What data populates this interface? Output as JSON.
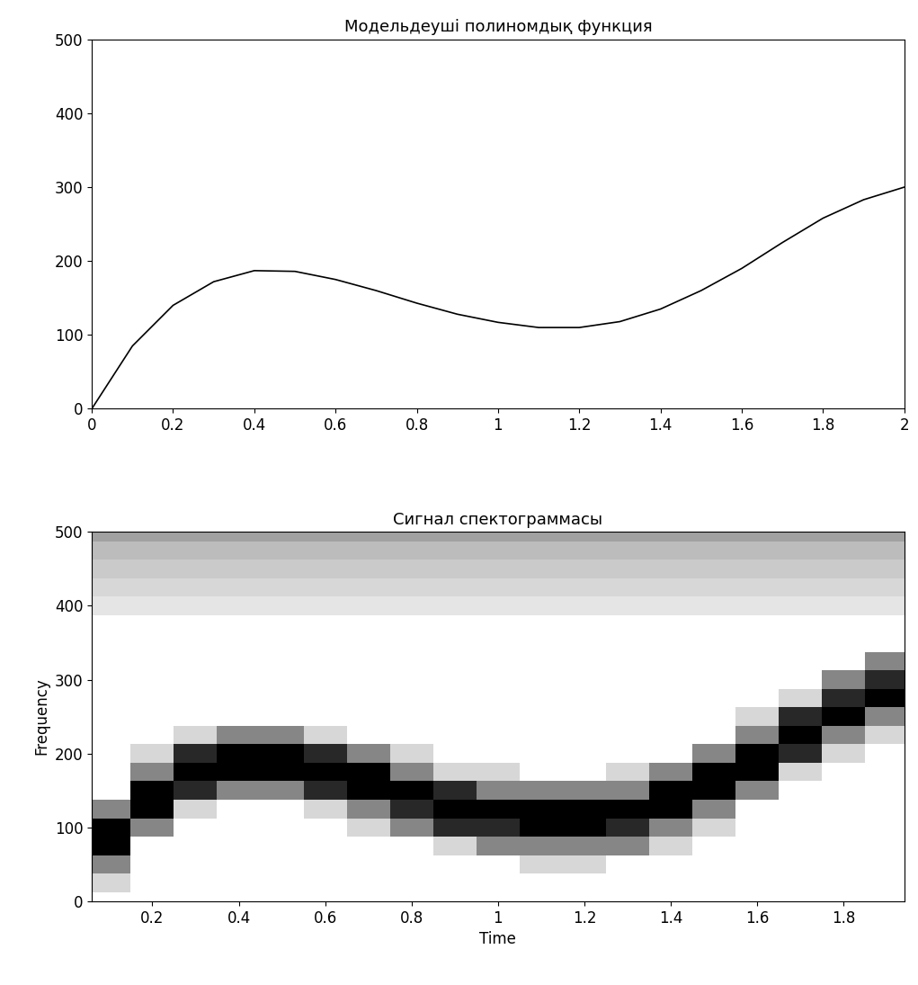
{
  "chart_data": [
    {
      "type": "line",
      "title": "Модельдеуші полиномдық функция",
      "color": "#000000",
      "x": [
        0,
        0.1,
        0.2,
        0.3,
        0.4,
        0.5,
        0.6,
        0.7,
        0.8,
        0.9,
        1,
        1.1,
        1.2,
        1.3,
        1.4,
        1.5,
        1.6,
        1.7,
        1.8,
        1.9,
        2
      ],
      "values": [
        0,
        85,
        140,
        172,
        187,
        186,
        175,
        160,
        143,
        128,
        117,
        110,
        110,
        118,
        135,
        160,
        190,
        225,
        258,
        283,
        300
      ],
      "xlim": [
        0,
        2
      ],
      "xticks": [
        0,
        0.2,
        0.4,
        0.6,
        0.8,
        1,
        1.2,
        1.4,
        1.6,
        1.8,
        2
      ],
      "ylim": [
        0,
        500
      ],
      "yticks": [
        0,
        100,
        200,
        300,
        400,
        500
      ]
    },
    {
      "type": "heatmap",
      "title": "Сигнал спектограммасы",
      "x_label": "Time",
      "y_label": "Frequency",
      "x": [
        0.1,
        0.2,
        0.3,
        0.4,
        0.5,
        0.6,
        0.7,
        0.8,
        0.9,
        1,
        1.1,
        1.2,
        1.3,
        1.4,
        1.5,
        1.6,
        1.7,
        1.8,
        1.9
      ],
      "y": [
        0,
        25,
        50,
        75,
        100,
        125,
        150,
        175,
        200,
        225,
        250,
        275,
        300,
        325,
        350,
        375,
        400,
        425,
        450,
        475,
        500
      ],
      "cells_by_column": [
        [
          0.05,
          0.2,
          0.5,
          1,
          1,
          0.5,
          0.05,
          0.05,
          0.05,
          0.05,
          0.05,
          0.05,
          0.05,
          0.05,
          0.05,
          0.05,
          0.15,
          0.2,
          0.25,
          0.3,
          0.4
        ],
        [
          0.05,
          0.05,
          0.05,
          0.05,
          0.5,
          1,
          1,
          0.5,
          0.2,
          0.05,
          0.05,
          0.05,
          0.05,
          0.05,
          0.05,
          0.05,
          0.15,
          0.2,
          0.25,
          0.3,
          0.4
        ],
        [
          0.05,
          0.05,
          0.05,
          0.05,
          0.05,
          0.2,
          0.85,
          1,
          0.85,
          0.2,
          0.05,
          0.05,
          0.05,
          0.05,
          0.05,
          0.05,
          0.15,
          0.2,
          0.25,
          0.3,
          0.4
        ],
        [
          0.05,
          0.05,
          0.05,
          0.05,
          0.05,
          0.05,
          0.5,
          1,
          1,
          0.5,
          0.05,
          0.05,
          0.05,
          0.05,
          0.05,
          0.05,
          0.15,
          0.2,
          0.25,
          0.3,
          0.4
        ],
        [
          0.05,
          0.05,
          0.05,
          0.05,
          0.05,
          0.05,
          0.5,
          1,
          1,
          0.5,
          0.05,
          0.05,
          0.05,
          0.05,
          0.05,
          0.05,
          0.15,
          0.2,
          0.25,
          0.3,
          0.4
        ],
        [
          0.05,
          0.05,
          0.05,
          0.05,
          0.05,
          0.2,
          0.85,
          1,
          0.85,
          0.2,
          0.05,
          0.05,
          0.05,
          0.05,
          0.05,
          0.05,
          0.15,
          0.2,
          0.25,
          0.3,
          0.4
        ],
        [
          0.05,
          0.05,
          0.05,
          0.05,
          0.2,
          0.5,
          1,
          1,
          0.5,
          0.05,
          0.05,
          0.05,
          0.05,
          0.05,
          0.05,
          0.05,
          0.15,
          0.2,
          0.25,
          0.3,
          0.4
        ],
        [
          0.05,
          0.05,
          0.05,
          0.05,
          0.5,
          0.85,
          1,
          0.5,
          0.2,
          0.05,
          0.05,
          0.05,
          0.05,
          0.05,
          0.05,
          0.05,
          0.15,
          0.2,
          0.25,
          0.3,
          0.4
        ],
        [
          0.05,
          0.05,
          0.05,
          0.2,
          0.85,
          1,
          0.85,
          0.2,
          0.05,
          0.05,
          0.05,
          0.05,
          0.05,
          0.05,
          0.05,
          0.05,
          0.15,
          0.2,
          0.25,
          0.3,
          0.4
        ],
        [
          0.05,
          0.05,
          0.05,
          0.5,
          0.85,
          1,
          0.5,
          0.2,
          0.05,
          0.05,
          0.05,
          0.05,
          0.05,
          0.05,
          0.05,
          0.05,
          0.15,
          0.2,
          0.25,
          0.3,
          0.4
        ],
        [
          0.05,
          0.05,
          0.2,
          0.5,
          1,
          1,
          0.5,
          0.05,
          0.05,
          0.05,
          0.05,
          0.05,
          0.05,
          0.05,
          0.05,
          0.05,
          0.15,
          0.2,
          0.25,
          0.3,
          0.4
        ],
        [
          0.05,
          0.05,
          0.2,
          0.5,
          1,
          1,
          0.5,
          0.05,
          0.05,
          0.05,
          0.05,
          0.05,
          0.05,
          0.05,
          0.05,
          0.05,
          0.15,
          0.2,
          0.25,
          0.3,
          0.4
        ],
        [
          0.05,
          0.05,
          0.05,
          0.5,
          0.85,
          1,
          0.5,
          0.2,
          0.05,
          0.05,
          0.05,
          0.05,
          0.05,
          0.05,
          0.05,
          0.05,
          0.15,
          0.2,
          0.25,
          0.3,
          0.4
        ],
        [
          0.05,
          0.05,
          0.05,
          0.2,
          0.5,
          1,
          1,
          0.5,
          0.05,
          0.05,
          0.05,
          0.05,
          0.05,
          0.05,
          0.05,
          0.05,
          0.15,
          0.2,
          0.25,
          0.3,
          0.4
        ],
        [
          0.05,
          0.05,
          0.05,
          0.05,
          0.2,
          0.5,
          1,
          1,
          0.5,
          0.05,
          0.05,
          0.05,
          0.05,
          0.05,
          0.05,
          0.05,
          0.15,
          0.2,
          0.25,
          0.3,
          0.4
        ],
        [
          0.05,
          0.05,
          0.05,
          0.05,
          0.05,
          0.05,
          0.5,
          1,
          1,
          0.5,
          0.2,
          0.05,
          0.05,
          0.05,
          0.05,
          0.05,
          0.15,
          0.2,
          0.25,
          0.3,
          0.4
        ],
        [
          0.05,
          0.05,
          0.05,
          0.05,
          0.05,
          0.05,
          0.05,
          0.2,
          0.85,
          1,
          0.85,
          0.2,
          0.05,
          0.05,
          0.05,
          0.05,
          0.15,
          0.2,
          0.25,
          0.3,
          0.4
        ],
        [
          0.05,
          0.05,
          0.05,
          0.05,
          0.05,
          0.05,
          0.05,
          0.05,
          0.2,
          0.5,
          1,
          0.85,
          0.5,
          0.05,
          0.05,
          0.05,
          0.15,
          0.2,
          0.25,
          0.3,
          0.4
        ],
        [
          0.05,
          0.05,
          0.05,
          0.05,
          0.05,
          0.05,
          0.05,
          0.05,
          0.05,
          0.2,
          0.5,
          1,
          0.85,
          0.5,
          0.05,
          0.05,
          0.15,
          0.2,
          0.25,
          0.3,
          0.4
        ]
      ],
      "xlim": [
        0.06,
        1.94
      ],
      "xticks": [
        0.2,
        0.4,
        0.6,
        0.8,
        1,
        1.2,
        1.4,
        1.6,
        1.8
      ],
      "ylim": [
        0,
        500
      ],
      "yticks": [
        0,
        100,
        200,
        300,
        400,
        500
      ]
    }
  ]
}
